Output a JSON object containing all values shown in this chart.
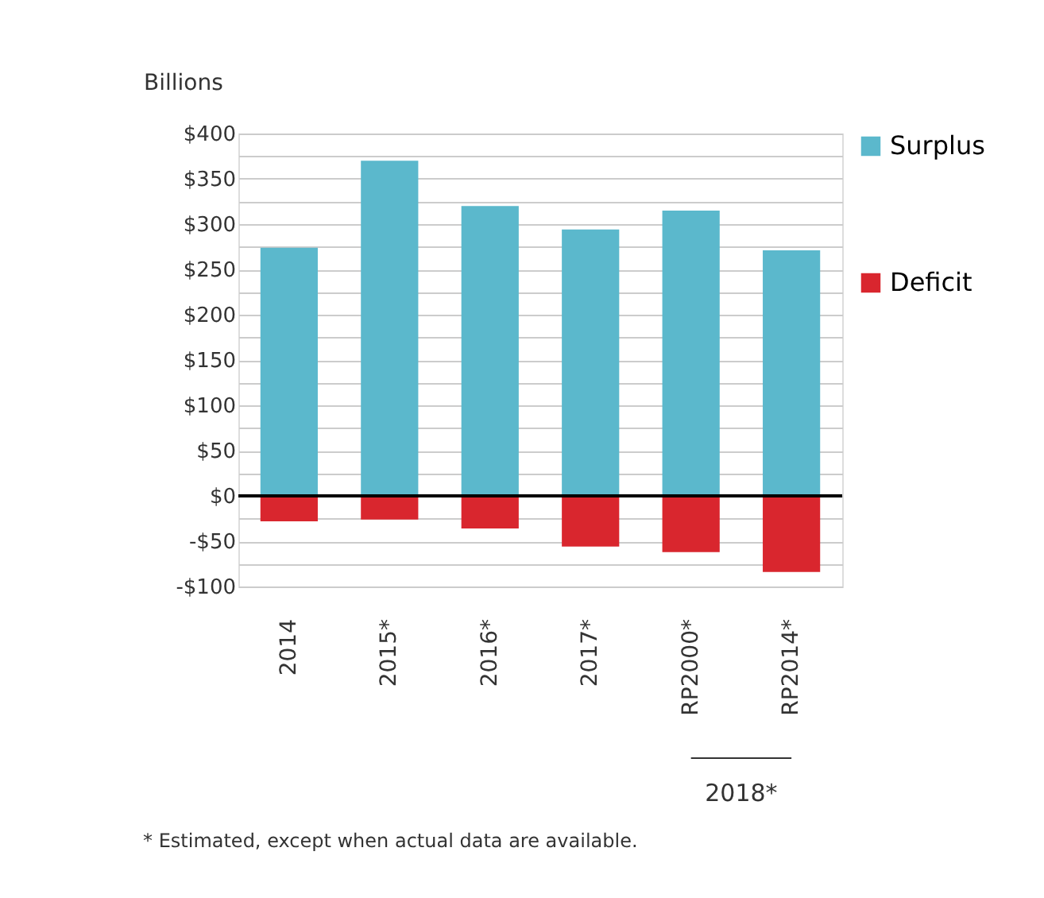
{
  "chart_data": {
    "type": "bar",
    "ylabel": "Billions",
    "stacked": true,
    "categories": [
      "2014",
      "2015*",
      "2016*",
      "2017*",
      "RP2000*",
      "RP2014*"
    ],
    "series": [
      {
        "name": "Surplus",
        "color": "#5bb8cc",
        "values": [
          274,
          370,
          320,
          294,
          315,
          271
        ]
      },
      {
        "name": "Deficit",
        "color": "#d9262e",
        "values": [
          -28,
          -26,
          -36,
          -56,
          -62,
          -84
        ]
      }
    ],
    "ylim": [
      -100,
      400
    ],
    "yticks": [
      {
        "value": -100,
        "label": "-$100"
      },
      {
        "value": -75,
        "label": null
      },
      {
        "value": -50,
        "label": "-$50"
      },
      {
        "value": -25,
        "label": null
      },
      {
        "value": 0,
        "label": "$0"
      },
      {
        "value": 25,
        "label": null
      },
      {
        "value": 50,
        "label": "$50"
      },
      {
        "value": 75,
        "label": null
      },
      {
        "value": 100,
        "label": "$100"
      },
      {
        "value": 125,
        "label": null
      },
      {
        "value": 150,
        "label": "$150"
      },
      {
        "value": 175,
        "label": null
      },
      {
        "value": 200,
        "label": "$200"
      },
      {
        "value": 225,
        "label": null
      },
      {
        "value": 250,
        "label": "$250"
      },
      {
        "value": 275,
        "label": null
      },
      {
        "value": 300,
        "label": "$300"
      },
      {
        "value": 325,
        "label": null
      },
      {
        "value": 350,
        "label": "$350"
      },
      {
        "value": 375,
        "label": null
      },
      {
        "value": 400,
        "label": "$400"
      }
    ],
    "ref_lines": [
      {
        "axis": "y",
        "value": 0,
        "color": "#000000"
      }
    ],
    "grid": "y",
    "legend": "right",
    "annotations": [
      "2018*",
      "* Estimated, except when actual data are available."
    ]
  }
}
